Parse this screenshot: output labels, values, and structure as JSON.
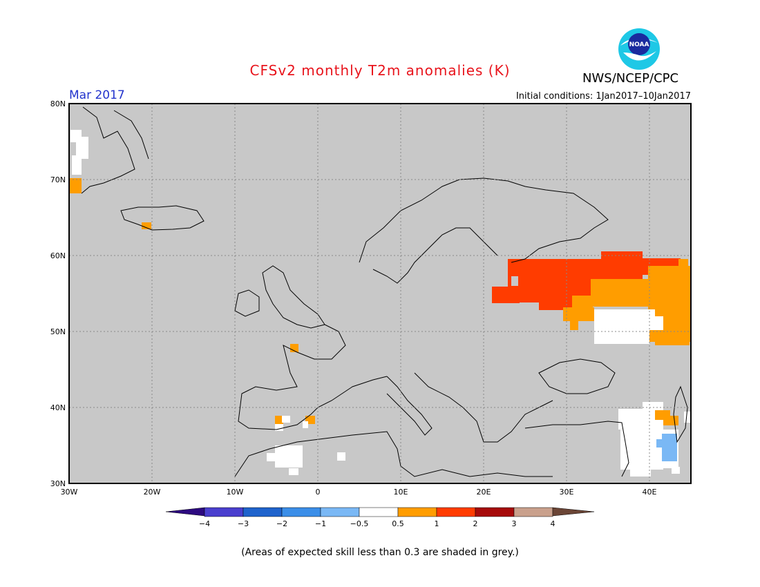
{
  "header": {
    "title": "CFSv2 monthly T2m anomalies (K)",
    "month": "Mar 2017",
    "initial_conditions": "Initial conditions: 1Jan2017–10Jan2017",
    "agency": "NWS/NCEP/CPC",
    "logo_text": "NOAA"
  },
  "axes": {
    "lat_labels": [
      "80N",
      "70N",
      "60N",
      "50N",
      "40N",
      "30N"
    ],
    "lon_labels": [
      "30W",
      "20W",
      "10W",
      "0",
      "10E",
      "20E",
      "30E",
      "40E"
    ]
  },
  "colorbar": {
    "labels": [
      "−4",
      "−3",
      "−2",
      "−1",
      "−0.5",
      "0.5",
      "1",
      "2",
      "3",
      "4"
    ],
    "colors": [
      "#2d0a80",
      "#4a3fce",
      "#1f63cc",
      "#3b8ee8",
      "#7ab8f5",
      "#ffffff",
      "#ff9d00",
      "#ff3c00",
      "#a60a0a",
      "#c9a08c",
      "#6b4536"
    ]
  },
  "footnote": "(Areas of expected skill less than 0.3 are shaded in grey.)",
  "map_colors": {
    "skill_grey": "#c8c8c8",
    "anom_05_1": "#ff9d00",
    "anom_1_2": "#ff3c00",
    "anom_m05_05": "#ffffff",
    "anom_m1_m05": "#7ab8f5"
  }
}
